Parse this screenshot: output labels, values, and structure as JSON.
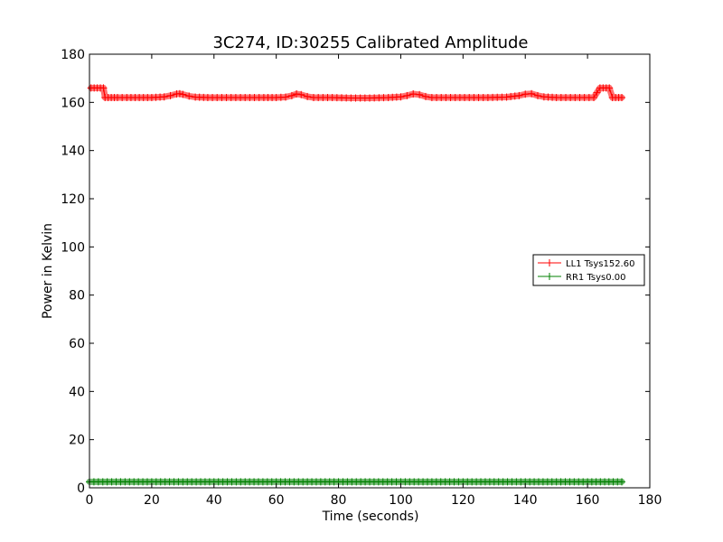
{
  "chart_data": {
    "type": "line",
    "title": "3C274, ID:30255 Calibrated Amplitude",
    "xlabel": "Time (seconds)",
    "ylabel": "Power in Kelvin",
    "xlim": [
      0,
      180
    ],
    "ylim": [
      0,
      180
    ],
    "xticks": [
      0,
      20,
      40,
      60,
      80,
      100,
      120,
      140,
      160,
      180
    ],
    "yticks": [
      0,
      20,
      40,
      60,
      80,
      100,
      120,
      140,
      160,
      180
    ],
    "grid": false,
    "legend_position": "center-right",
    "series": [
      {
        "name": "LL1 Tsys152.60",
        "color": "#ff0000",
        "marker": "plus",
        "points": [
          [
            0.5,
            166
          ],
          [
            1.5,
            166
          ],
          [
            2.5,
            166
          ],
          [
            3.5,
            166
          ],
          [
            4.5,
            166
          ],
          [
            5,
            162
          ],
          [
            6,
            162
          ],
          [
            7,
            162
          ],
          [
            8,
            162
          ],
          [
            9,
            162
          ],
          [
            12,
            162
          ],
          [
            16,
            162
          ],
          [
            20,
            162
          ],
          [
            24,
            162.3
          ],
          [
            26,
            162.8
          ],
          [
            28,
            163.5
          ],
          [
            29,
            163.6
          ],
          [
            30,
            163.3
          ],
          [
            32,
            162.6
          ],
          [
            34,
            162.2
          ],
          [
            38,
            162
          ],
          [
            44,
            162
          ],
          [
            50,
            162
          ],
          [
            56,
            162
          ],
          [
            60,
            162
          ],
          [
            63,
            162.2
          ],
          [
            65,
            162.8
          ],
          [
            66.5,
            163.5
          ],
          [
            68,
            163.2
          ],
          [
            70,
            162.4
          ],
          [
            72,
            162
          ],
          [
            78,
            162
          ],
          [
            84,
            161.8
          ],
          [
            90,
            161.8
          ],
          [
            96,
            162
          ],
          [
            100,
            162.3
          ],
          [
            102,
            162.8
          ],
          [
            104,
            163.5
          ],
          [
            106,
            163.2
          ],
          [
            108,
            162.4
          ],
          [
            110,
            162
          ],
          [
            116,
            162
          ],
          [
            122,
            162
          ],
          [
            128,
            162
          ],
          [
            134,
            162.2
          ],
          [
            138,
            162.8
          ],
          [
            140,
            163.4
          ],
          [
            142,
            163.6
          ],
          [
            144,
            162.8
          ],
          [
            146,
            162.3
          ],
          [
            150,
            162
          ],
          [
            156,
            162
          ],
          [
            162,
            162
          ],
          [
            163,
            164
          ],
          [
            164,
            166
          ],
          [
            165,
            166
          ],
          [
            166,
            166
          ],
          [
            167,
            166
          ],
          [
            168,
            162
          ],
          [
            169,
            162
          ],
          [
            170,
            162
          ],
          [
            171,
            162
          ]
        ]
      },
      {
        "name": "RR1 Tsys0.00",
        "color": "#008000",
        "marker": "plus",
        "points": [
          [
            0,
            2.5
          ],
          [
            10,
            2.5
          ],
          [
            20,
            2.5
          ],
          [
            30,
            2.5
          ],
          [
            40,
            2.5
          ],
          [
            50,
            2.5
          ],
          [
            60,
            2.5
          ],
          [
            70,
            2.5
          ],
          [
            80,
            2.5
          ],
          [
            90,
            2.5
          ],
          [
            100,
            2.5
          ],
          [
            110,
            2.5
          ],
          [
            120,
            2.5
          ],
          [
            130,
            2.5
          ],
          [
            140,
            2.5
          ],
          [
            150,
            2.5
          ],
          [
            160,
            2.5
          ],
          [
            171,
            2.5
          ]
        ]
      }
    ]
  }
}
